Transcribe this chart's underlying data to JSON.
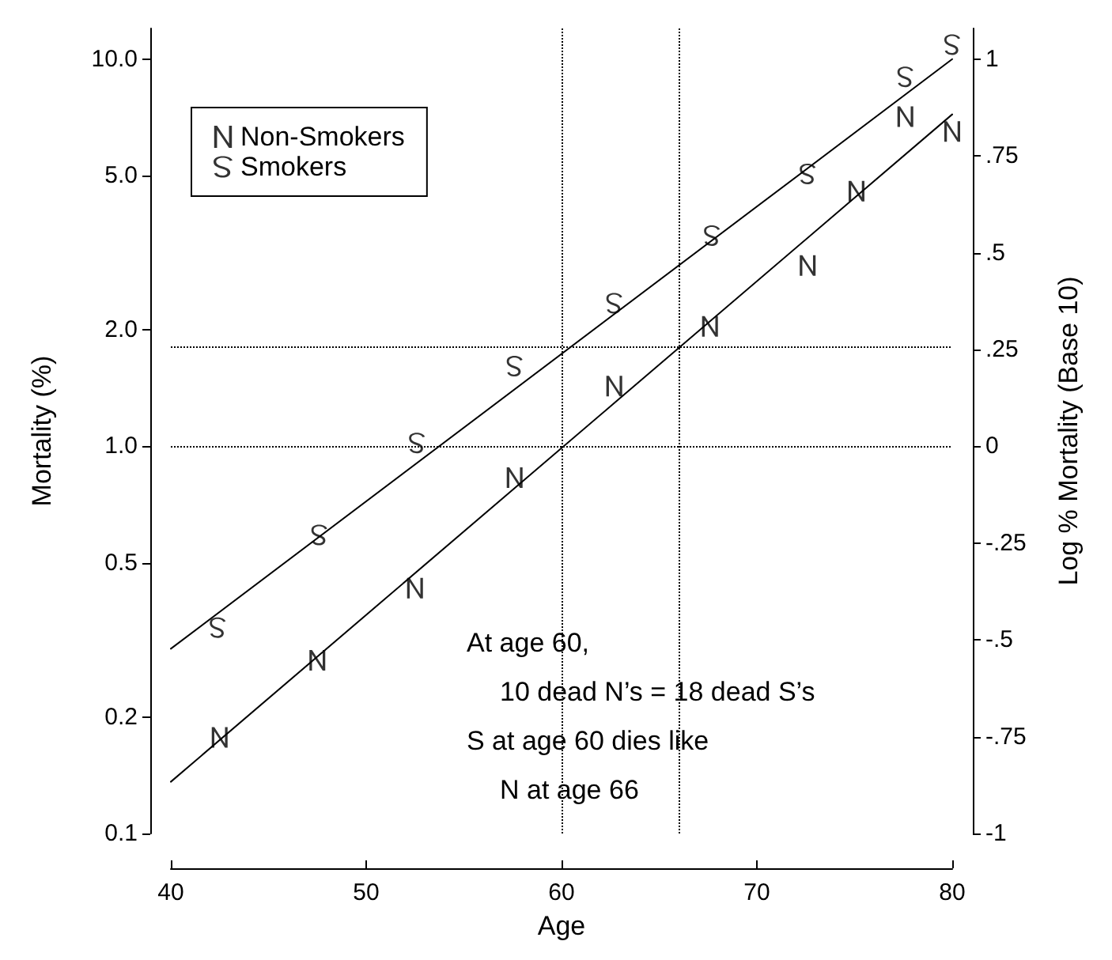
{
  "chart_data": {
    "type": "scatter",
    "xlabel": "Age",
    "ylabel": "Mortality (%)",
    "y2label": "Log % Mortality (Base 10)",
    "xlim": [
      40,
      80
    ],
    "xticks": [
      40,
      50,
      60,
      70,
      80
    ],
    "ylim": [
      0.1,
      12
    ],
    "yticks": [
      0.1,
      0.2,
      0.5,
      {
        "value": 1,
        "label": "1.0"
      },
      {
        "value": 2,
        "label": "2.0"
      },
      {
        "value": 5,
        "label": "5.0"
      },
      {
        "value": 10,
        "label": "10.0"
      }
    ],
    "y2lim": [
      -1,
      1.079
    ],
    "y2ticks": [
      {
        "value": -1,
        "label": "-1"
      },
      {
        "value": -0.75,
        "label": "-.75"
      },
      {
        "value": -0.5,
        "label": "-.5"
      },
      {
        "value": -0.25,
        "label": "-.25"
      },
      {
        "value": 0,
        "label": "0"
      },
      {
        "value": 0.25,
        "label": ".25"
      },
      {
        "value": 0.5,
        "label": ".5"
      },
      {
        "value": 0.75,
        "label": ".75"
      },
      {
        "value": 1,
        "label": "1"
      }
    ],
    "log": "y",
    "grid": false,
    "legend": "top left",
    "series": [
      {
        "name": "Non-Smokers",
        "color": "#000000",
        "x": [
          42.5,
          47.5,
          52.5,
          57.6,
          62.7,
          67.6,
          72.6,
          75.1,
          77.6,
          80.0
        ],
        "values": [
          0.177,
          0.28,
          0.43,
          0.83,
          1.43,
          2.04,
          2.93,
          4.56,
          7.1,
          6.5
        ]
      },
      {
        "name": "Smokers",
        "color": "#000000",
        "x": [
          42.4,
          47.6,
          52.6,
          57.6,
          62.7,
          67.7,
          72.6,
          77.6,
          80.0
        ],
        "values": [
          0.34,
          0.59,
          1.02,
          1.61,
          2.34,
          3.5,
          5.05,
          9.0,
          10.9
        ]
      },
      {
        "type": "line",
        "marker": "none",
        "line_style": "solid",
        "color": "#000000",
        "x": [
          40,
          80
        ],
        "values": [
          0.136,
          7.2
        ]
      },
      {
        "type": "line",
        "marker": "none",
        "line_style": "solid",
        "color": "#000000",
        "x": [
          40,
          80
        ],
        "values": [
          0.3,
          10.0
        ]
      }
    ],
    "ref_lines": [
      {
        "axis": "x",
        "value": 60,
        "color": "#000000",
        "line_style": "dotted"
      },
      {
        "axis": "x",
        "value": 66,
        "color": "#000000",
        "line_style": "dotted"
      },
      {
        "axis": "y",
        "value": 1.0,
        "color": "#000000",
        "line_style": "dotted"
      },
      {
        "axis": "y",
        "value": 1.8,
        "color": "#000000",
        "line_style": "dotted"
      }
    ],
    "annotations": [
      "At age 60,",
      "10 dead N’s = 18 dead S’s",
      "S at age 60 dies like",
      "N at age 66"
    ]
  }
}
